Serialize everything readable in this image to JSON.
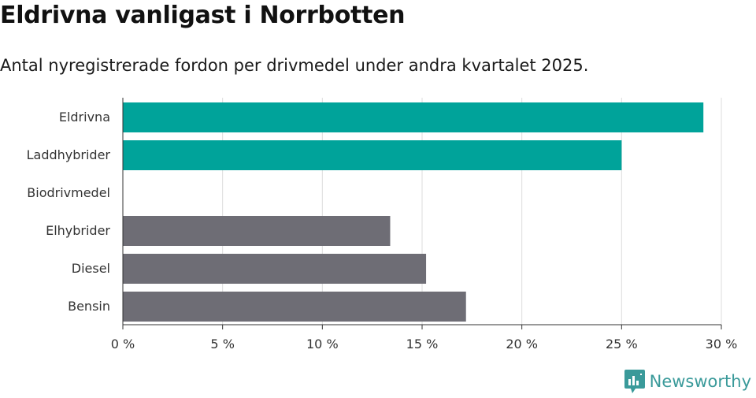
{
  "header": {
    "title": "Eldrivna vanligast i Norrbotten",
    "subtitle": "Antal nyregistrerade fordon per drivmedel under andra kvartalet 2025."
  },
  "brand": {
    "name": "Newsworthy",
    "icon": "newsworthy-logo-icon",
    "color": "#3a9a9a"
  },
  "chart_data": {
    "type": "bar",
    "orientation": "horizontal",
    "categories": [
      "Eldrivna",
      "Laddhybrider",
      "Biodrivmedel",
      "Elhybrider",
      "Diesel",
      "Bensin"
    ],
    "values": [
      29.1,
      25.0,
      0,
      13.4,
      15.2,
      17.2
    ],
    "colors": [
      "#00a39a",
      "#00a39a",
      "#00a39a",
      "#6e6d75",
      "#6e6d75",
      "#6e6d75"
    ],
    "xlim": [
      0,
      30
    ],
    "xticks": [
      0,
      5,
      10,
      15,
      20,
      25,
      30
    ],
    "tick_labels": [
      "0 %",
      "5 %",
      "10 %",
      "15 %",
      "20 %",
      "25 %",
      "30 %"
    ],
    "grid": true
  }
}
